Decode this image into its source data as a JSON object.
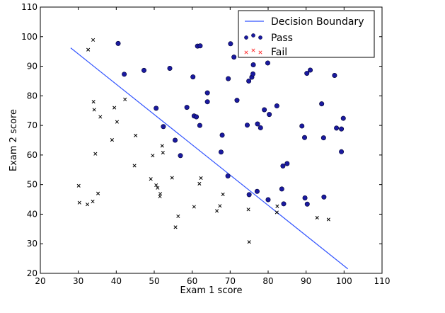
{
  "chart_data": {
    "type": "scatter",
    "title": "",
    "xlabel": "Exam 1 score",
    "ylabel": "Exam 2 score",
    "xlim": [
      20,
      110
    ],
    "ylim": [
      20,
      110
    ],
    "xticks": [
      20,
      30,
      40,
      50,
      60,
      70,
      80,
      90,
      100,
      110
    ],
    "yticks": [
      20,
      30,
      40,
      50,
      60,
      70,
      80,
      90,
      100,
      110
    ],
    "grid": false,
    "legend_position": "top-right",
    "boundary": {
      "name": "Decision Boundary",
      "type": "line",
      "color": "#3355ff",
      "points": [
        [
          28,
          96.2
        ],
        [
          101,
          21.5
        ]
      ]
    },
    "series": [
      {
        "name": "Pass",
        "marker": "circle",
        "color": "#1a1aa0",
        "points": [
          [
            40.5,
            97.7
          ],
          [
            42.1,
            87.3
          ],
          [
            47.3,
            88.6
          ],
          [
            54.1,
            89.3
          ],
          [
            60.2,
            86.4
          ],
          [
            61.4,
            96.8
          ],
          [
            62.1,
            96.9
          ],
          [
            69.5,
            85.8
          ],
          [
            70.1,
            97.6
          ],
          [
            71.0,
            93.1
          ],
          [
            74.9,
            85.0
          ],
          [
            75.7,
            86.3
          ],
          [
            76.0,
            87.4
          ],
          [
            76.1,
            90.5
          ],
          [
            79.9,
            91.1
          ],
          [
            90.2,
            87.6
          ],
          [
            91.1,
            88.7
          ],
          [
            97.5,
            86.9
          ],
          [
            94.1,
            77.3
          ],
          [
            82.3,
            76.6
          ],
          [
            79.0,
            75.3
          ],
          [
            80.3,
            73.7
          ],
          [
            64.0,
            81.0
          ],
          [
            64.0,
            78.0
          ],
          [
            58.6,
            76.1
          ],
          [
            60.5,
            73.2
          ],
          [
            61.1,
            72.9
          ],
          [
            62.0,
            70.0
          ],
          [
            52.4,
            69.6
          ],
          [
            50.5,
            75.8
          ],
          [
            55.5,
            65.0
          ],
          [
            56.9,
            59.8
          ],
          [
            67.9,
            66.7
          ],
          [
            67.6,
            61.0
          ],
          [
            69.4,
            52.9
          ],
          [
            71.8,
            78.5
          ],
          [
            74.5,
            70.1
          ],
          [
            77.2,
            70.5
          ],
          [
            78.0,
            69.2
          ],
          [
            88.9,
            69.8
          ],
          [
            89.6,
            65.9
          ],
          [
            94.6,
            65.8
          ],
          [
            98.0,
            69.1
          ],
          [
            99.3,
            68.8
          ],
          [
            99.8,
            72.4
          ],
          [
            99.3,
            61.1
          ],
          [
            83.9,
            56.3
          ],
          [
            85.0,
            57.1
          ],
          [
            75.0,
            46.6
          ],
          [
            77.1,
            47.7
          ],
          [
            80.0,
            44.9
          ],
          [
            83.6,
            48.5
          ],
          [
            84.1,
            43.5
          ],
          [
            89.7,
            45.5
          ],
          [
            90.3,
            43.4
          ],
          [
            94.7,
            45.8
          ]
        ]
      },
      {
        "name": "Fail",
        "marker": "x",
        "color": "#000000",
        "points": [
          [
            34.0,
            78.0
          ],
          [
            30.3,
            43.9
          ],
          [
            35.8,
            72.9
          ],
          [
            33.9,
            98.9
          ],
          [
            32.6,
            95.6
          ],
          [
            34.2,
            75.3
          ],
          [
            39.5,
            76.0
          ],
          [
            40.2,
            71.2
          ],
          [
            42.3,
            78.8
          ],
          [
            38.9,
            65.1
          ],
          [
            45.1,
            66.6
          ],
          [
            34.5,
            60.4
          ],
          [
            30.1,
            49.6
          ],
          [
            35.2,
            47.0
          ],
          [
            33.8,
            44.3
          ],
          [
            32.4,
            43.3
          ],
          [
            44.8,
            56.4
          ],
          [
            49.1,
            51.9
          ],
          [
            49.6,
            59.8
          ],
          [
            50.5,
            49.8
          ],
          [
            50.9,
            48.9
          ],
          [
            51.6,
            46.9
          ],
          [
            51.5,
            46.0
          ],
          [
            52.1,
            63.1
          ],
          [
            52.3,
            60.8
          ],
          [
            54.7,
            52.3
          ],
          [
            55.6,
            35.6
          ],
          [
            56.3,
            39.3
          ],
          [
            60.5,
            42.5
          ],
          [
            61.9,
            50.3
          ],
          [
            62.3,
            52.2
          ],
          [
            66.5,
            41.1
          ],
          [
            67.3,
            42.8
          ],
          [
            68.1,
            46.7
          ],
          [
            74.8,
            41.6
          ],
          [
            75.0,
            30.6
          ],
          [
            82.4,
            42.7
          ],
          [
            82.3,
            40.6
          ],
          [
            92.9,
            38.8
          ],
          [
            95.9,
            38.2
          ]
        ]
      }
    ]
  }
}
